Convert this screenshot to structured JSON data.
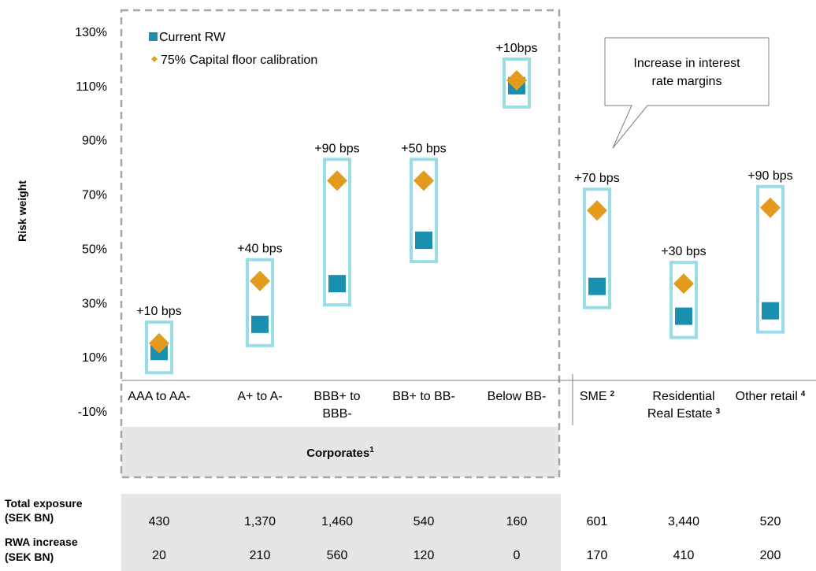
{
  "chart_data": {
    "type": "scatter",
    "ylabel": "Risk weight",
    "ylim": [
      -10,
      130
    ],
    "y_ticks": [
      "130%",
      "110%",
      "90%",
      "70%",
      "50%",
      "30%",
      "10%",
      "-10%"
    ],
    "y_tick_values": [
      130,
      110,
      90,
      70,
      50,
      30,
      10,
      -10
    ],
    "legend": {
      "position": "top-left",
      "entries": [
        {
          "name": "Current RW",
          "color": "#1a8fb0",
          "marker": "square"
        },
        {
          "name": "75% Capital floor calibration",
          "color": "#e39b1e",
          "marker": "diamond"
        }
      ]
    },
    "categories": [
      {
        "label_lines": [
          "AAA to AA-"
        ],
        "sup": "",
        "current": 12,
        "floor": 15,
        "annotation": "+10 bps"
      },
      {
        "label_lines": [
          "A+ to A-"
        ],
        "sup": "",
        "current": 22,
        "floor": 38,
        "annotation": "+40 bps"
      },
      {
        "label_lines": [
          "BBB+ to",
          "BBB-"
        ],
        "sup": "",
        "current": 37,
        "floor": 75,
        "annotation": "+90 bps"
      },
      {
        "label_lines": [
          "BB+ to BB-"
        ],
        "sup": "",
        "current": 53,
        "floor": 75,
        "annotation": "+50 bps"
      },
      {
        "label_lines": [
          "Below BB-"
        ],
        "sup": "",
        "current": 110,
        "floor": 112,
        "annotation": "+10bps"
      },
      {
        "label_lines": [
          "SME"
        ],
        "sup": "2",
        "current": 36,
        "floor": 64,
        "annotation": "+70 bps"
      },
      {
        "label_lines": [
          "Residential",
          "Real Estate"
        ],
        "sup": "3",
        "current": 25,
        "floor": 37,
        "annotation": "+30 bps"
      },
      {
        "label_lines": [
          "Other retail"
        ],
        "sup": "4",
        "current": 27,
        "floor": 65,
        "annotation": "+90 bps"
      }
    ],
    "group_label": {
      "text": "Corporates",
      "sup": "1"
    },
    "callout": {
      "lines": [
        "Increase in interest",
        "rate margins"
      ]
    },
    "table": {
      "rows": [
        {
          "label_lines": [
            "Total exposure",
            "(SEK BN)"
          ],
          "values": [
            "430",
            "1,370",
            "1,460",
            "540",
            "160",
            "601",
            "3,440",
            "520"
          ]
        },
        {
          "label_lines": [
            "RWA increase",
            "(SEK BN)"
          ],
          "values": [
            "20",
            "210",
            "560",
            "120",
            "0",
            "170",
            "410",
            "200"
          ]
        }
      ]
    },
    "colors": {
      "current": "#1a8fb0",
      "floor": "#e39b1e",
      "box": "#9adce6",
      "gray_band": "#e6e6e6",
      "dashed_border": "#a6a6a6"
    }
  }
}
